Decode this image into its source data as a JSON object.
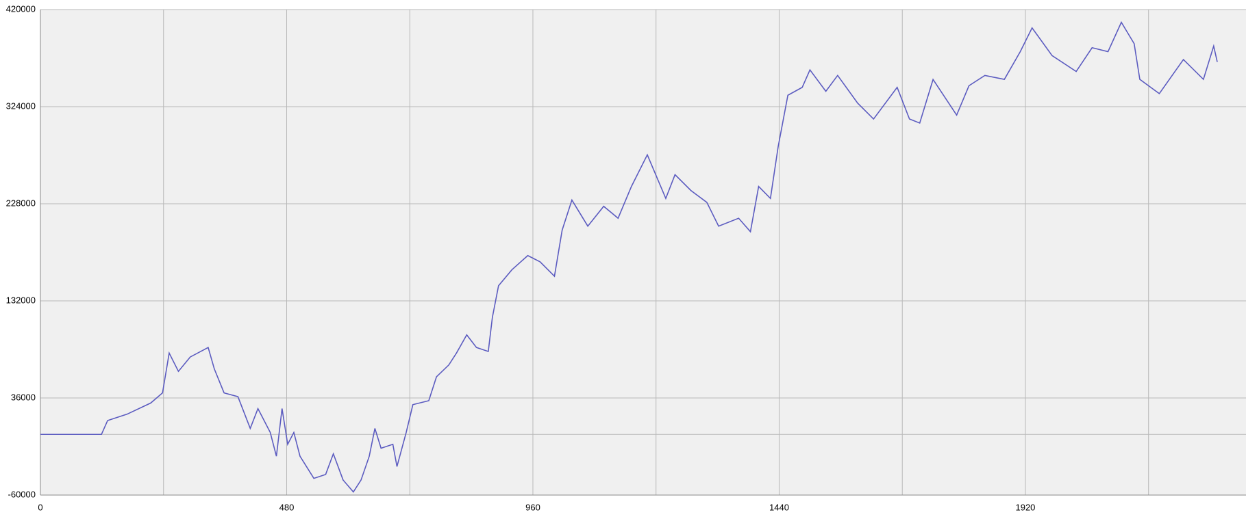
{
  "chart_data": {
    "type": "line",
    "x": [
      0,
      119,
      131,
      169,
      215,
      238,
      251,
      269,
      292,
      327,
      339,
      358,
      385,
      409,
      424,
      448,
      460,
      471,
      482,
      494,
      506,
      533,
      556,
      571,
      590,
      610,
      625,
      641,
      652,
      664,
      687,
      695,
      713,
      726,
      757,
      772,
      796,
      811,
      831,
      850,
      873,
      881,
      893,
      919,
      950,
      974,
      1002,
      1017,
      1036,
      1067,
      1098,
      1126,
      1152,
      1183,
      1219,
      1237,
      1268,
      1299,
      1322,
      1361,
      1384,
      1400,
      1423,
      1438,
      1457,
      1485,
      1500,
      1531,
      1554,
      1593,
      1624,
      1670,
      1694,
      1714,
      1740,
      1786,
      1810,
      1841,
      1879,
      1910,
      1933,
      1972,
      2019,
      2050,
      2081,
      2107,
      2132,
      2143,
      2181,
      2228,
      2267,
      2287,
      2294
    ],
    "series": [
      {
        "color": "#5b5bc0",
        "values": [
          0,
          0,
          13700,
          20000,
          31000,
          41000,
          80400,
          62300,
          76500,
          85900,
          64700,
          41000,
          37300,
          5900,
          25500,
          1900,
          -21600,
          25500,
          -9800,
          1900,
          -21600,
          -43500,
          -39600,
          -19200,
          -45100,
          -56900,
          -45100,
          -21600,
          5900,
          -13700,
          -9800,
          -31800,
          1900,
          29400,
          33300,
          56900,
          68600,
          80400,
          98400,
          85900,
          82000,
          115700,
          147000,
          162700,
          176800,
          170600,
          156400,
          201900,
          231700,
          205900,
          225500,
          213700,
          245100,
          276400,
          233300,
          256800,
          241100,
          229400,
          205900,
          213700,
          200400,
          245100,
          233300,
          284300,
          335300,
          343100,
          360400,
          339200,
          354900,
          327500,
          311800,
          343100,
          311800,
          307800,
          350900,
          315700,
          344700,
          354900,
          351000,
          378400,
          401900,
          374500,
          358800,
          382300,
          378400,
          407400,
          386300,
          351000,
          336900,
          370600,
          351000,
          383900,
          368200
        ]
      }
    ],
    "xlim": [
      0,
      2350
    ],
    "xticks": [
      0,
      480,
      960,
      1440,
      1920
    ],
    "x_grid": [
      240,
      720,
      1200,
      1680,
      2160
    ],
    "ylim": [
      -60000,
      420000
    ],
    "yticks": [
      -60000,
      36000,
      132000,
      228000,
      324000,
      420000
    ],
    "y_grid": [
      0
    ],
    "grid": true
  }
}
